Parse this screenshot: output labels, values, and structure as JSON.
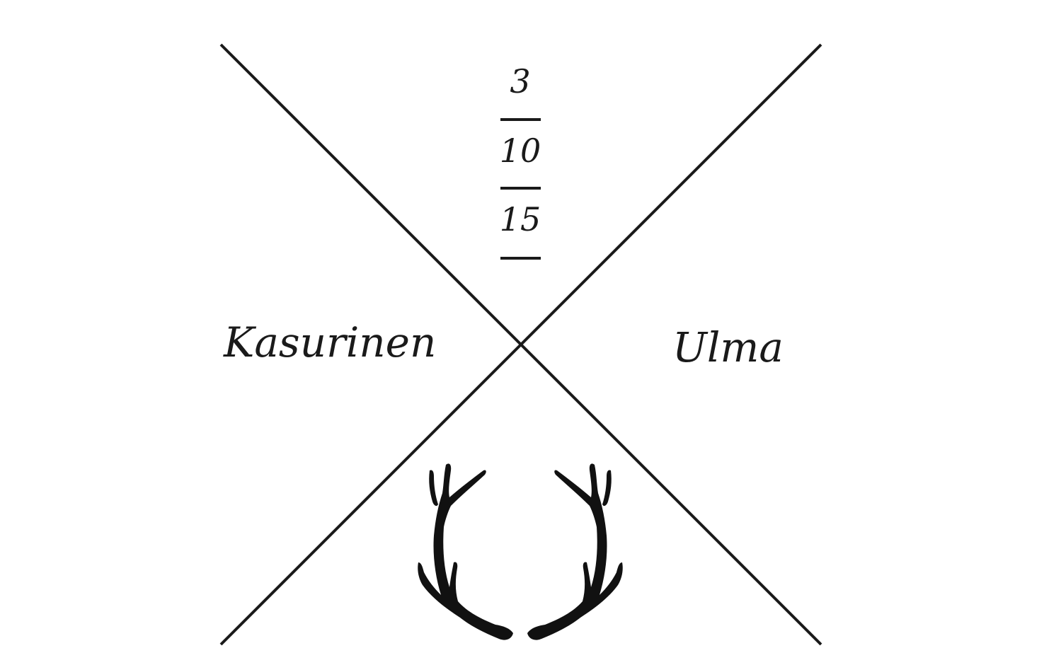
{
  "date": {
    "day": "3",
    "month": "10",
    "year": "15"
  },
  "names": {
    "left": "Kasurinen",
    "right": "Ulma"
  },
  "emblem": {
    "icon": "antlers-icon"
  },
  "colors": {
    "ink": "#1a1a1a",
    "background": "#ffffff"
  }
}
